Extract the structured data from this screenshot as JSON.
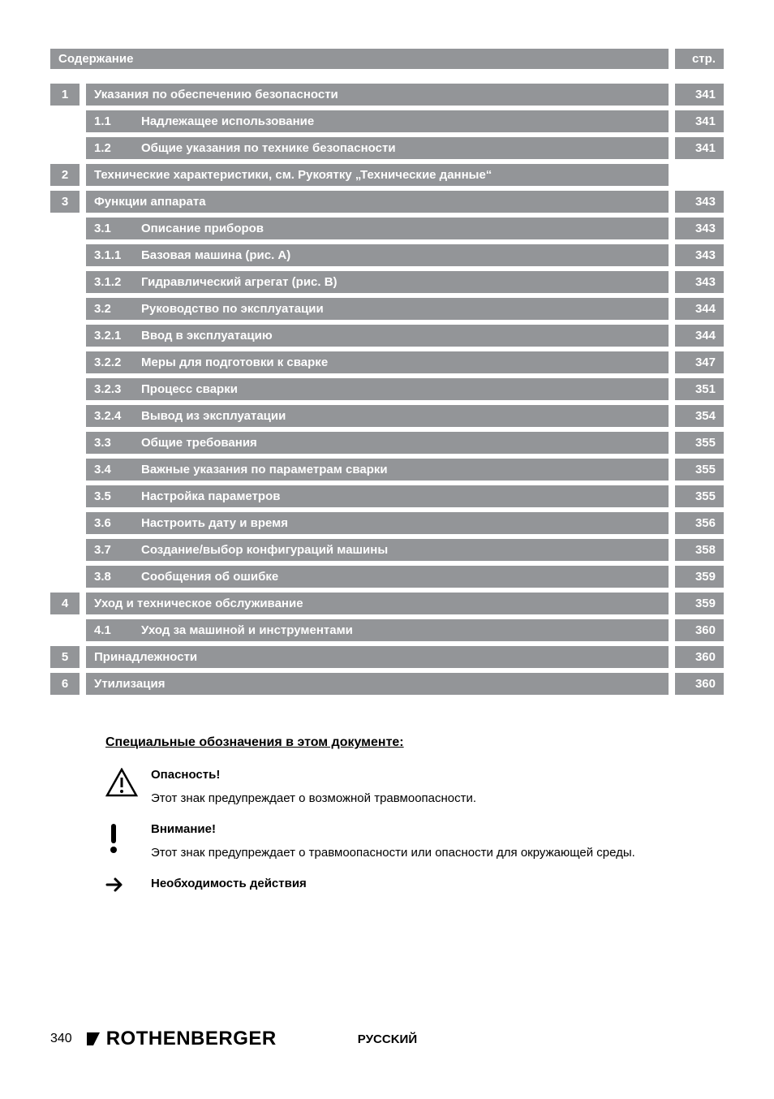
{
  "colors": {
    "bar_bg": "#939598",
    "bar_text": "#ffffff",
    "page_bg": "#ffffff",
    "body_text": "#000000"
  },
  "typography": {
    "toc_fontsize": 15,
    "notes_title_fontsize": 16,
    "body_fontsize": 15,
    "footer_logo_fontsize": 24,
    "footer_page_fontsize": 16
  },
  "toc": {
    "header_left": "Содержание",
    "header_right": "стр.",
    "rows": [
      {
        "section": "1",
        "num": "",
        "title": "Указания по обеспечению безопасности",
        "page": "341",
        "indent": false
      },
      {
        "section": "",
        "num": "1.1",
        "title": "Надлежащее использование",
        "page": "341",
        "indent": true
      },
      {
        "section": "",
        "num": "1.2",
        "title": "Общие указания по технике безопасности",
        "page": "341",
        "indent": true
      },
      {
        "section": "2",
        "num": "",
        "title": "Технические характеристики, см. Рукоятку „Технические данные“",
        "page": "",
        "indent": false
      },
      {
        "section": "3",
        "num": "",
        "title": "Функции аппарата",
        "page": "343",
        "indent": false
      },
      {
        "section": "",
        "num": "3.1",
        "title": "Описание приборов",
        "page": "343",
        "indent": true
      },
      {
        "section": "",
        "num": "3.1.1",
        "title": "Базовая машина (рис. А)",
        "page": "343",
        "indent": true
      },
      {
        "section": "",
        "num": "3.1.2",
        "title": "Гидравлический агрегат (рис. В)",
        "page": "343",
        "indent": true
      },
      {
        "section": "",
        "num": "3.2",
        "title": "Руководство по эксплуатации",
        "page": "344",
        "indent": true
      },
      {
        "section": "",
        "num": "3.2.1",
        "title": "Ввод в эксплуатацию",
        "page": "344",
        "indent": true
      },
      {
        "section": "",
        "num": "3.2.2",
        "title": "Меры для подготовки к сварке",
        "page": "347",
        "indent": true
      },
      {
        "section": "",
        "num": "3.2.3",
        "title": "Процесс сварки",
        "page": "351",
        "indent": true
      },
      {
        "section": "",
        "num": "3.2.4",
        "title": "Вывод из эксплуатации",
        "page": "354",
        "indent": true
      },
      {
        "section": "",
        "num": "3.3",
        "title": "Общие требования",
        "page": "355",
        "indent": true
      },
      {
        "section": "",
        "num": "3.4",
        "title": "Важные указания по параметрам сварки",
        "page": "355",
        "indent": true
      },
      {
        "section": "",
        "num": "3.5",
        "title": "Настройка параметров",
        "page": "355",
        "indent": true
      },
      {
        "section": "",
        "num": "3.6",
        "title": "Настроить дату и время",
        "page": "356",
        "indent": true
      },
      {
        "section": "",
        "num": "3.7",
        "title": "Создание/выбор конфигураций машины",
        "page": "358",
        "indent": true
      },
      {
        "section": "",
        "num": "3.8",
        "title": "Сообщения об ошибке",
        "page": "359",
        "indent": true
      },
      {
        "section": "4",
        "num": "",
        "title": "Уход и техническое обслуживание",
        "page": "359",
        "indent": false
      },
      {
        "section": "",
        "num": "4.1",
        "title": "Уход за машиной и инструментами",
        "page": "360",
        "indent": true
      },
      {
        "section": "5",
        "num": "",
        "title": "Принадлежности",
        "page": "360",
        "indent": false
      },
      {
        "section": "6",
        "num": "",
        "title": "Утилизация",
        "page": "360",
        "indent": false
      }
    ]
  },
  "notes": {
    "title": "Специальные обозначения в этом документе:",
    "items": [
      {
        "icon": "warning-triangle",
        "heading": "Опасность!",
        "body": "Этот знак предупреждает о возможной травмоопасности."
      },
      {
        "icon": "exclamation",
        "heading": "Внимание!",
        "body": "Этот знак предупреждает о травмоопасности или опасности для окружающей среды."
      },
      {
        "icon": "arrow-right",
        "heading": "Необходимость действия",
        "body": ""
      }
    ]
  },
  "footer": {
    "page_number": "340",
    "logo": "ROTHENBERGER",
    "language": "PУCCKИЙ"
  }
}
